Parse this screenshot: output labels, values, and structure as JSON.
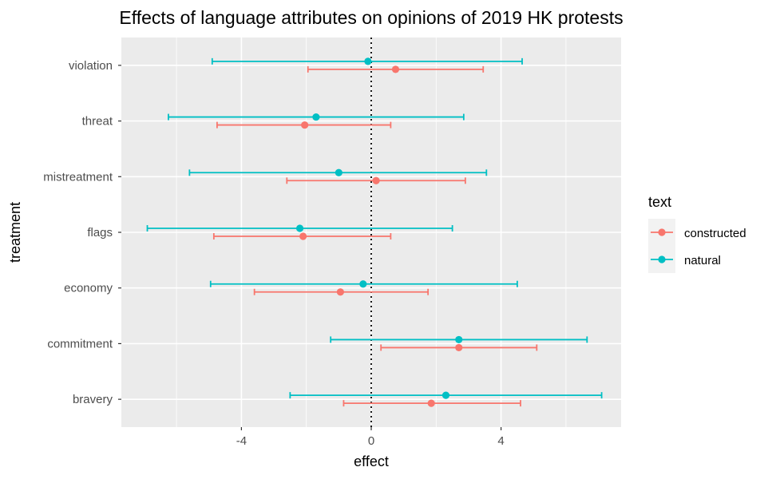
{
  "chart_data": {
    "type": "scatter",
    "subtype": "dot-and-errorbar",
    "title": "Effects of language attributes on opinions of 2019 HK protests",
    "xlabel": "effect",
    "ylabel": "treatment",
    "xlim": [
      -7.7,
      7.7
    ],
    "x_ticks": [
      -4,
      0,
      4
    ],
    "x_tick_labels": [
      "-4",
      "0",
      "4"
    ],
    "reference_line": {
      "x": 0,
      "style": "dotted"
    },
    "categories": [
      "violation",
      "threat",
      "mistreatment",
      "flags",
      "economy",
      "commitment",
      "bravery"
    ],
    "legend": {
      "title": "text",
      "position": "right",
      "entries": [
        "constructed",
        "natural"
      ]
    },
    "grid": true,
    "panel_background": "#ebebeb",
    "series": [
      {
        "name": "constructed",
        "color": "#f8766d",
        "points": [
          {
            "category": "violation",
            "estimate": 0.75,
            "lower": -1.95,
            "upper": 3.45
          },
          {
            "category": "threat",
            "estimate": -2.05,
            "lower": -4.75,
            "upper": 0.6
          },
          {
            "category": "mistreatment",
            "estimate": 0.15,
            "lower": -2.6,
            "upper": 2.9
          },
          {
            "category": "flags",
            "estimate": -2.1,
            "lower": -4.85,
            "upper": 0.6
          },
          {
            "category": "economy",
            "estimate": -0.95,
            "lower": -3.6,
            "upper": 1.75
          },
          {
            "category": "commitment",
            "estimate": 2.7,
            "lower": 0.3,
            "upper": 5.1
          },
          {
            "category": "bravery",
            "estimate": 1.85,
            "lower": -0.85,
            "upper": 4.6
          }
        ]
      },
      {
        "name": "natural",
        "color": "#00bfc4",
        "points": [
          {
            "category": "violation",
            "estimate": -0.1,
            "lower": -4.9,
            "upper": 4.65
          },
          {
            "category": "threat",
            "estimate": -1.7,
            "lower": -6.25,
            "upper": 2.85
          },
          {
            "category": "mistreatment",
            "estimate": -1.0,
            "lower": -5.6,
            "upper": 3.55
          },
          {
            "category": "flags",
            "estimate": -2.2,
            "lower": -6.9,
            "upper": 2.5
          },
          {
            "category": "economy",
            "estimate": -0.25,
            "lower": -4.95,
            "upper": 4.5
          },
          {
            "category": "commitment",
            "estimate": 2.7,
            "lower": -1.25,
            "upper": 6.65
          },
          {
            "category": "bravery",
            "estimate": 2.3,
            "lower": -2.5,
            "upper": 7.1
          }
        ]
      }
    ]
  }
}
